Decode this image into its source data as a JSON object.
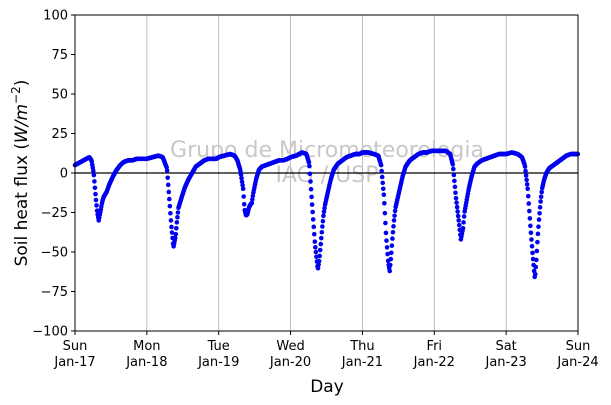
{
  "chart_data": {
    "type": "scatter",
    "xlabel": "Day",
    "ylabel": "Soil heat flux (W/m⁻²)",
    "ylabel_parts": {
      "prefix": "Soil heat flux (",
      "unit": "W/m",
      "exponent": "−2",
      "suffix": ")"
    },
    "ylim": [
      -100,
      100
    ],
    "yticks": [
      -100,
      -75,
      -50,
      -25,
      0,
      25,
      50,
      75,
      100
    ],
    "xlim": [
      "2016-01-17",
      "2016-01-24"
    ],
    "xticks": [
      {
        "day": "Sun",
        "date": "Jan-17"
      },
      {
        "day": "Mon",
        "date": "Jan-18"
      },
      {
        "day": "Tue",
        "date": "Jan-19"
      },
      {
        "day": "Wed",
        "date": "Jan-20"
      },
      {
        "day": "Thu",
        "date": "Jan-21"
      },
      {
        "day": "Fri",
        "date": "Jan-22"
      },
      {
        "day": "Sat",
        "date": "Jan-23"
      },
      {
        "day": "Sun",
        "date": "Jan-24"
      }
    ],
    "grid": "x-only",
    "zero_line": true,
    "series_color": "#0000ee",
    "watermark": [
      "Grupo de Micrometeorologia",
      "IAG / USP"
    ],
    "series": [
      {
        "x_days": [
          0.0,
          0.08,
          0.16,
          0.2,
          0.23,
          0.26,
          0.29,
          0.31,
          0.33,
          0.36,
          0.38,
          0.4,
          0.44,
          0.48,
          0.53,
          0.58,
          0.63,
          0.68,
          0.74,
          0.8,
          0.86,
          0.92,
          0.97,
          1.0,
          1.08,
          1.16,
          1.22,
          1.28,
          1.31,
          1.34,
          1.37,
          1.4,
          1.42,
          1.44,
          1.48,
          1.53,
          1.58,
          1.63,
          1.68,
          1.74,
          1.8,
          1.86,
          1.92,
          1.97,
          2.0,
          2.08,
          2.16,
          2.22,
          2.26,
          2.3,
          2.34,
          2.36,
          2.38,
          2.4,
          2.42,
          2.44,
          2.46,
          2.48,
          2.52,
          2.56,
          2.6,
          2.66,
          2.72,
          2.78,
          2.84,
          2.9,
          2.96,
          3.0,
          3.08,
          3.16,
          3.22,
          3.26,
          3.3,
          3.34,
          3.38,
          3.4,
          3.42,
          3.44,
          3.46,
          3.48,
          3.52,
          3.56,
          3.6,
          3.66,
          3.72,
          3.78,
          3.84,
          3.9,
          3.96,
          4.0,
          4.08,
          4.16,
          4.22,
          4.26,
          4.3,
          4.33,
          4.36,
          4.38,
          4.4,
          4.42,
          4.44,
          4.46,
          4.48,
          4.52,
          4.56,
          4.6,
          4.66,
          4.72,
          4.78,
          4.84,
          4.9,
          4.96,
          5.0,
          5.08,
          5.16,
          5.22,
          5.26,
          5.3,
          5.34,
          5.37,
          5.4,
          5.42,
          5.44,
          5.46,
          5.48,
          5.52,
          5.56,
          5.6,
          5.66,
          5.72,
          5.78,
          5.84,
          5.9,
          5.96,
          6.0,
          6.08,
          6.16,
          6.22,
          6.26,
          6.3,
          6.34,
          6.37,
          6.4,
          6.42,
          6.44,
          6.46,
          6.48,
          6.5,
          6.53,
          6.56,
          6.6,
          6.66,
          6.72,
          6.78,
          6.84,
          6.9,
          6.96,
          7.0
        ],
        "y": [
          5,
          7,
          9,
          10,
          8,
          0,
          -16,
          -25,
          -30,
          -23,
          -18,
          -15,
          -12,
          -7,
          -2,
          2,
          5,
          7,
          8,
          8,
          9,
          9,
          9,
          9,
          10,
          11,
          10,
          3,
          -15,
          -33,
          -47,
          -40,
          -30,
          -22,
          -16,
          -9,
          -4,
          0,
          4,
          6,
          8,
          9,
          9,
          9,
          10,
          11,
          12,
          11,
          8,
          2,
          -10,
          -23,
          -27,
          -26,
          -22,
          -20,
          -19,
          -13,
          -4,
          2,
          4,
          5,
          6,
          7,
          8,
          8,
          9,
          10,
          11,
          13,
          12,
          6,
          -20,
          -45,
          -61,
          -55,
          -45,
          -35,
          -26,
          -20,
          -12,
          -4,
          2,
          6,
          8,
          10,
          11,
          12,
          12,
          13,
          13,
          12,
          11,
          5,
          -15,
          -40,
          -57,
          -62,
          -52,
          -40,
          -30,
          -22,
          -18,
          -10,
          -2,
          4,
          8,
          10,
          12,
          13,
          13,
          14,
          14,
          14,
          14,
          12,
          5,
          -15,
          -30,
          -42,
          -35,
          -25,
          -20,
          -15,
          -10,
          -2,
          4,
          6,
          8,
          9,
          10,
          11,
          12,
          12,
          12,
          13,
          12,
          10,
          5,
          -10,
          -35,
          -52,
          -67,
          -55,
          -40,
          -28,
          -18,
          -10,
          -4,
          0,
          3,
          5,
          7,
          9,
          11,
          12,
          12,
          12
        ]
      }
    ]
  }
}
